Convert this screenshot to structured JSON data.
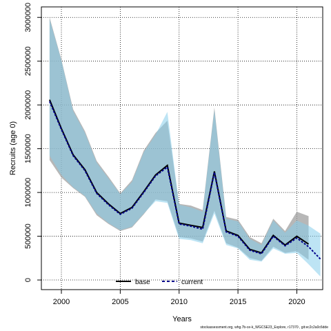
{
  "chart_data": {
    "type": "line",
    "xlabel": "Years",
    "ylabel": "Recruits (age 0)",
    "xlim": [
      1998.3,
      2022.2
    ],
    "ylim": [
      -110000,
      3120000
    ],
    "xticks": [
      2000,
      2005,
      2010,
      2015,
      2020
    ],
    "yticks": [
      0,
      500000,
      1000000,
      1500000,
      2000000,
      2500000,
      3000000
    ],
    "grid": true,
    "legend_position": "bottom-center",
    "caption": "stockassessment.org, whg.7b-ce-k_WGCSE23_Explore, r17370 , git:ec2c2a0c6dde",
    "series": [
      {
        "name": "base",
        "color": "#000000",
        "band_color": "#999999",
        "line_style": "solid",
        "x": [
          1999,
          2000,
          2001,
          2002,
          2003,
          2004,
          2005,
          2006,
          2007,
          2008,
          2009,
          2010,
          2011,
          2012,
          2013,
          2014,
          2015,
          2016,
          2017,
          2018,
          2019,
          2020,
          2021,
          2022
        ],
        "values": [
          2060000,
          1730000,
          1430000,
          1260000,
          1000000,
          870000,
          760000,
          830000,
          1010000,
          1200000,
          1310000,
          650000,
          625000,
          600000,
          1240000,
          560000,
          510000,
          350000,
          310000,
          510000,
          400000,
          500000,
          410000,
          null
        ],
        "lower": [
          1370000,
          1170000,
          1050000,
          950000,
          740000,
          640000,
          560000,
          600000,
          750000,
          920000,
          900000,
          490000,
          475000,
          440000,
          790000,
          420000,
          370000,
          250000,
          220000,
          380000,
          310000,
          330000,
          230000,
          null
        ],
        "upper": [
          3000000,
          2520000,
          1950000,
          1700000,
          1360000,
          1180000,
          990000,
          1140000,
          1480000,
          1680000,
          1820000,
          870000,
          850000,
          800000,
          1970000,
          720000,
          690000,
          490000,
          420000,
          700000,
          560000,
          780000,
          730000,
          null
        ]
      },
      {
        "name": "current",
        "color": "#00008b",
        "band_color": "#87ceeb",
        "line_style": "dashed",
        "x": [
          1999,
          2000,
          2001,
          2002,
          2003,
          2004,
          2005,
          2006,
          2007,
          2008,
          2009,
          2010,
          2011,
          2012,
          2013,
          2014,
          2015,
          2016,
          2017,
          2018,
          2019,
          2020,
          2021,
          2022
        ],
        "values": [
          2040000,
          1720000,
          1420000,
          1250000,
          990000,
          860000,
          750000,
          820000,
          1000000,
          1190000,
          1290000,
          640000,
          615000,
          580000,
          1230000,
          550000,
          500000,
          340000,
          300000,
          500000,
          390000,
          480000,
          380000,
          240000
        ],
        "lower": [
          1420000,
          1200000,
          1060000,
          960000,
          760000,
          650000,
          570000,
          610000,
          760000,
          900000,
          880000,
          470000,
          455000,
          420000,
          760000,
          400000,
          360000,
          230000,
          210000,
          360000,
          300000,
          310000,
          180000,
          40000
        ],
        "upper": [
          2980000,
          2510000,
          1930000,
          1680000,
          1340000,
          1160000,
          980000,
          1120000,
          1460000,
          1660000,
          1920000,
          860000,
          830000,
          780000,
          1940000,
          700000,
          670000,
          470000,
          400000,
          680000,
          540000,
          680000,
          620000,
          530000
        ]
      }
    ]
  }
}
